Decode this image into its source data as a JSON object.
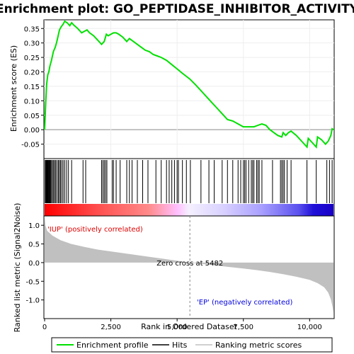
{
  "chart_data": {
    "type": "line",
    "title": "Enrichment plot: GO_PEPTIDASE_INHIBITOR_ACTIVITY",
    "xlabel": "Rank in Ordered Dataset",
    "ylabel_top": "Enrichment score (ES)",
    "ylabel_bottom": "Ranked list metric (Signal2Noise)",
    "xlim": [
      0,
      11000
    ],
    "x_ticks": [
      0,
      2500,
      5000,
      7500,
      10000
    ],
    "x_tick_labels": [
      "0",
      "2,500",
      "5,000",
      "7,500",
      "10,000"
    ],
    "es_ylim": [
      -0.1,
      0.38
    ],
    "es_ticks": [
      -0.05,
      0.0,
      0.05,
      0.1,
      0.15,
      0.2,
      0.25,
      0.3,
      0.35
    ],
    "es_tick_labels": [
      "-0.05",
      "0.00",
      "0.05",
      "0.10",
      "0.15",
      "0.20",
      "0.25",
      "0.30",
      "0.35"
    ],
    "metric_ylim": [
      -1.5,
      1.25
    ],
    "metric_ticks": [
      -1.0,
      -0.5,
      0.0,
      0.5,
      1.0
    ],
    "metric_tick_labels": [
      "-1.0",
      "-0.5",
      "0.0",
      "0.5",
      "1.0"
    ],
    "zero_cross_label": "Zero cross at 5482",
    "zero_cross": 5482,
    "total_ranks": 10900,
    "positive_label": "'IUP' (positively correlated)",
    "negative_label": "'EP' (negatively correlated)",
    "series": [
      {
        "name": "Enrichment profile",
        "color": "#00e000",
        "points": [
          [
            0,
            0.0
          ],
          [
            20,
            0.04
          ],
          [
            45,
            0.1
          ],
          [
            80,
            0.16
          ],
          [
            120,
            0.19
          ],
          [
            160,
            0.2
          ],
          [
            200,
            0.22
          ],
          [
            260,
            0.24
          ],
          [
            330,
            0.27
          ],
          [
            400,
            0.285
          ],
          [
            450,
            0.3
          ],
          [
            500,
            0.32
          ],
          [
            560,
            0.345
          ],
          [
            620,
            0.355
          ],
          [
            700,
            0.365
          ],
          [
            760,
            0.375
          ],
          [
            850,
            0.37
          ],
          [
            950,
            0.36
          ],
          [
            1020,
            0.37
          ],
          [
            1100,
            0.362
          ],
          [
            1250,
            0.35
          ],
          [
            1400,
            0.335
          ],
          [
            1500,
            0.34
          ],
          [
            1600,
            0.345
          ],
          [
            1700,
            0.335
          ],
          [
            1850,
            0.325
          ],
          [
            2000,
            0.31
          ],
          [
            2150,
            0.295
          ],
          [
            2250,
            0.305
          ],
          [
            2330,
            0.33
          ],
          [
            2400,
            0.325
          ],
          [
            2500,
            0.33
          ],
          [
            2600,
            0.335
          ],
          [
            2700,
            0.335
          ],
          [
            2800,
            0.33
          ],
          [
            2950,
            0.32
          ],
          [
            3100,
            0.305
          ],
          [
            3200,
            0.315
          ],
          [
            3350,
            0.305
          ],
          [
            3500,
            0.295
          ],
          [
            3650,
            0.285
          ],
          [
            3800,
            0.275
          ],
          [
            3950,
            0.27
          ],
          [
            4100,
            0.26
          ],
          [
            4250,
            0.255
          ],
          [
            4400,
            0.25
          ],
          [
            4600,
            0.24
          ],
          [
            4800,
            0.225
          ],
          [
            5000,
            0.21
          ],
          [
            5200,
            0.195
          ],
          [
            5482,
            0.175
          ],
          [
            5700,
            0.155
          ],
          [
            5900,
            0.135
          ],
          [
            6100,
            0.115
          ],
          [
            6300,
            0.095
          ],
          [
            6500,
            0.075
          ],
          [
            6700,
            0.055
          ],
          [
            6900,
            0.035
          ],
          [
            7100,
            0.03
          ],
          [
            7300,
            0.02
          ],
          [
            7500,
            0.01
          ],
          [
            7700,
            0.01
          ],
          [
            7900,
            0.01
          ],
          [
            8050,
            0.015
          ],
          [
            8200,
            0.02
          ],
          [
            8350,
            0.015
          ],
          [
            8500,
            0.0
          ],
          [
            8650,
            -0.01
          ],
          [
            8800,
            -0.02
          ],
          [
            8950,
            -0.025
          ],
          [
            9000,
            -0.01
          ],
          [
            9100,
            -0.02
          ],
          [
            9200,
            -0.01
          ],
          [
            9300,
            -0.005
          ],
          [
            9500,
            -0.02
          ],
          [
            9700,
            -0.04
          ],
          [
            9900,
            -0.06
          ],
          [
            9950,
            -0.03
          ],
          [
            10100,
            -0.045
          ],
          [
            10250,
            -0.06
          ],
          [
            10300,
            -0.025
          ],
          [
            10450,
            -0.035
          ],
          [
            10600,
            -0.05
          ],
          [
            10700,
            -0.04
          ],
          [
            10750,
            -0.03
          ],
          [
            10800,
            -0.02
          ],
          [
            10850,
            0.003
          ],
          [
            10900,
            0.0
          ]
        ]
      },
      {
        "name": "Hits",
        "color": "#000000",
        "ranks": [
          20,
          45,
          60,
          80,
          95,
          110,
          130,
          150,
          175,
          200,
          230,
          260,
          300,
          340,
          380,
          420,
          470,
          520,
          560,
          600,
          650,
          700,
          760,
          830,
          900,
          1020,
          1450,
          1550,
          2150,
          2200,
          2250,
          2300,
          2350,
          2550,
          2600,
          2700,
          2850,
          3100,
          3200,
          3300,
          3500,
          3700,
          3900,
          4200,
          4400,
          4600,
          4700,
          4800,
          4900,
          5000,
          5050,
          5200,
          5350,
          5500,
          5900,
          6200,
          6400,
          6700,
          6900,
          7100,
          7300,
          7400,
          7500,
          7550,
          7600,
          7700,
          7800,
          7850,
          7900,
          8000,
          8050,
          8100,
          8200,
          8600,
          8900,
          8950,
          9000,
          9050,
          9150,
          9300,
          9900,
          10250,
          10650,
          10750,
          10850
        ]
      },
      {
        "name": "Ranking metric scores",
        "color": "#c0c0c0",
        "points": [
          [
            0,
            1.25
          ],
          [
            30,
            1.0
          ],
          [
            100,
            0.85
          ],
          [
            300,
            0.72
          ],
          [
            600,
            0.6
          ],
          [
            1000,
            0.5
          ],
          [
            1500,
            0.42
          ],
          [
            2000,
            0.35
          ],
          [
            2500,
            0.3
          ],
          [
            3000,
            0.25
          ],
          [
            3500,
            0.2
          ],
          [
            4000,
            0.15
          ],
          [
            4500,
            0.1
          ],
          [
            5000,
            0.05
          ],
          [
            5482,
            0.0
          ],
          [
            6000,
            -0.04
          ],
          [
            6500,
            -0.08
          ],
          [
            7000,
            -0.12
          ],
          [
            7500,
            -0.16
          ],
          [
            8000,
            -0.2
          ],
          [
            8500,
            -0.25
          ],
          [
            9000,
            -0.31
          ],
          [
            9500,
            -0.38
          ],
          [
            10000,
            -0.46
          ],
          [
            10300,
            -0.55
          ],
          [
            10550,
            -0.66
          ],
          [
            10700,
            -0.8
          ],
          [
            10800,
            -0.98
          ],
          [
            10870,
            -1.2
          ],
          [
            10900,
            -1.35
          ]
        ]
      }
    ],
    "legend_entries": [
      "Enrichment profile",
      "Hits",
      "Ranking metric scores"
    ],
    "legend_placement": "bottom"
  }
}
